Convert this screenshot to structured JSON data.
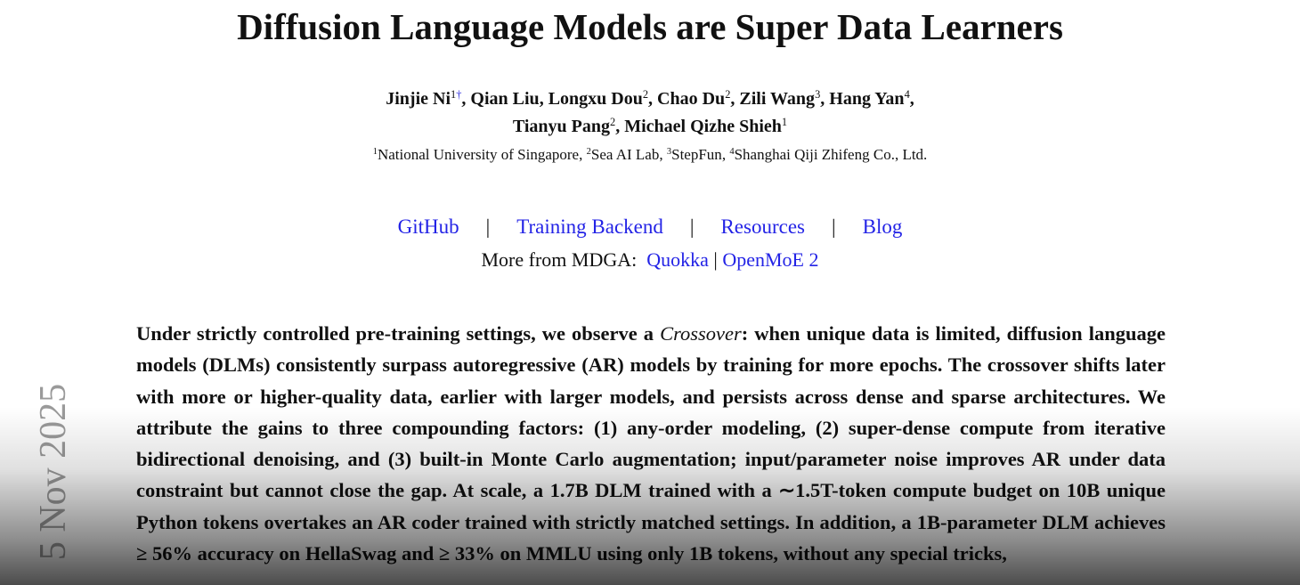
{
  "title": "Diffusion Language Models are Super Data Learners",
  "authors": [
    [
      {
        "name": "Jinjie Ni",
        "sup": "1†",
        "sep": ","
      },
      {
        "name": "Qian Liu",
        "sep": ","
      },
      {
        "name": "Longxu Dou",
        "sup": "2",
        "sep": ","
      },
      {
        "name": "Chao Du",
        "sup": "2",
        "sep": ","
      },
      {
        "name": "Zili Wang",
        "sup": "3",
        "sep": ","
      },
      {
        "name": "Hang Yan",
        "sup": "4",
        "sep": ","
      }
    ],
    [
      {
        "name": "Tianyu Pang",
        "sup": "2",
        "sep": ","
      },
      {
        "name": "Michael Qizhe Shieh",
        "sup": "1"
      }
    ]
  ],
  "affiliations": [
    {
      "num": "1",
      "name": "National University of Singapore",
      "sep": ","
    },
    {
      "num": "2",
      "name": "Sea AI Lab",
      "sep": ","
    },
    {
      "num": "3",
      "name": "StepFun",
      "sep": ","
    },
    {
      "num": "4",
      "name": "Shanghai Qiji Zhifeng Co., Ltd."
    }
  ],
  "links": [
    "GitHub",
    "Training Backend",
    "Resources",
    "Blog"
  ],
  "link_separator": "|",
  "more": {
    "label": "More from MDGA:",
    "links": [
      "Quokka",
      "OpenMoE 2"
    ]
  },
  "abstract": {
    "before": "Under strictly controlled pre-training settings, we observe a ",
    "emphasis": "Crossover",
    "after": ": when unique data is limited, diffusion language models (DLMs) consistently surpass autoregressive (AR) models by training for more epochs. The crossover shifts later with more or higher-quality data, earlier with larger models, and persists across dense and sparse architectures. We attribute the gains to three compounding factors: (1) any-order modeling, (2) super-dense compute from iterative bidirectional denoising, and (3) built-in Monte Carlo augmentation; input/parameter noise improves AR under data constraint but cannot close the gap. At scale, a 1.7B DLM trained with a ∼1.5T-token compute budget on 10B unique Python tokens overtakes an AR coder trained with strictly matched settings. In addition, a 1B-parameter DLM achieves ≥ 56% accuracy on HellaSwag and ≥ 33% on MMLU using only 1B tokens, without any special tricks,"
  },
  "date_stamp": "5 Nov 2025"
}
